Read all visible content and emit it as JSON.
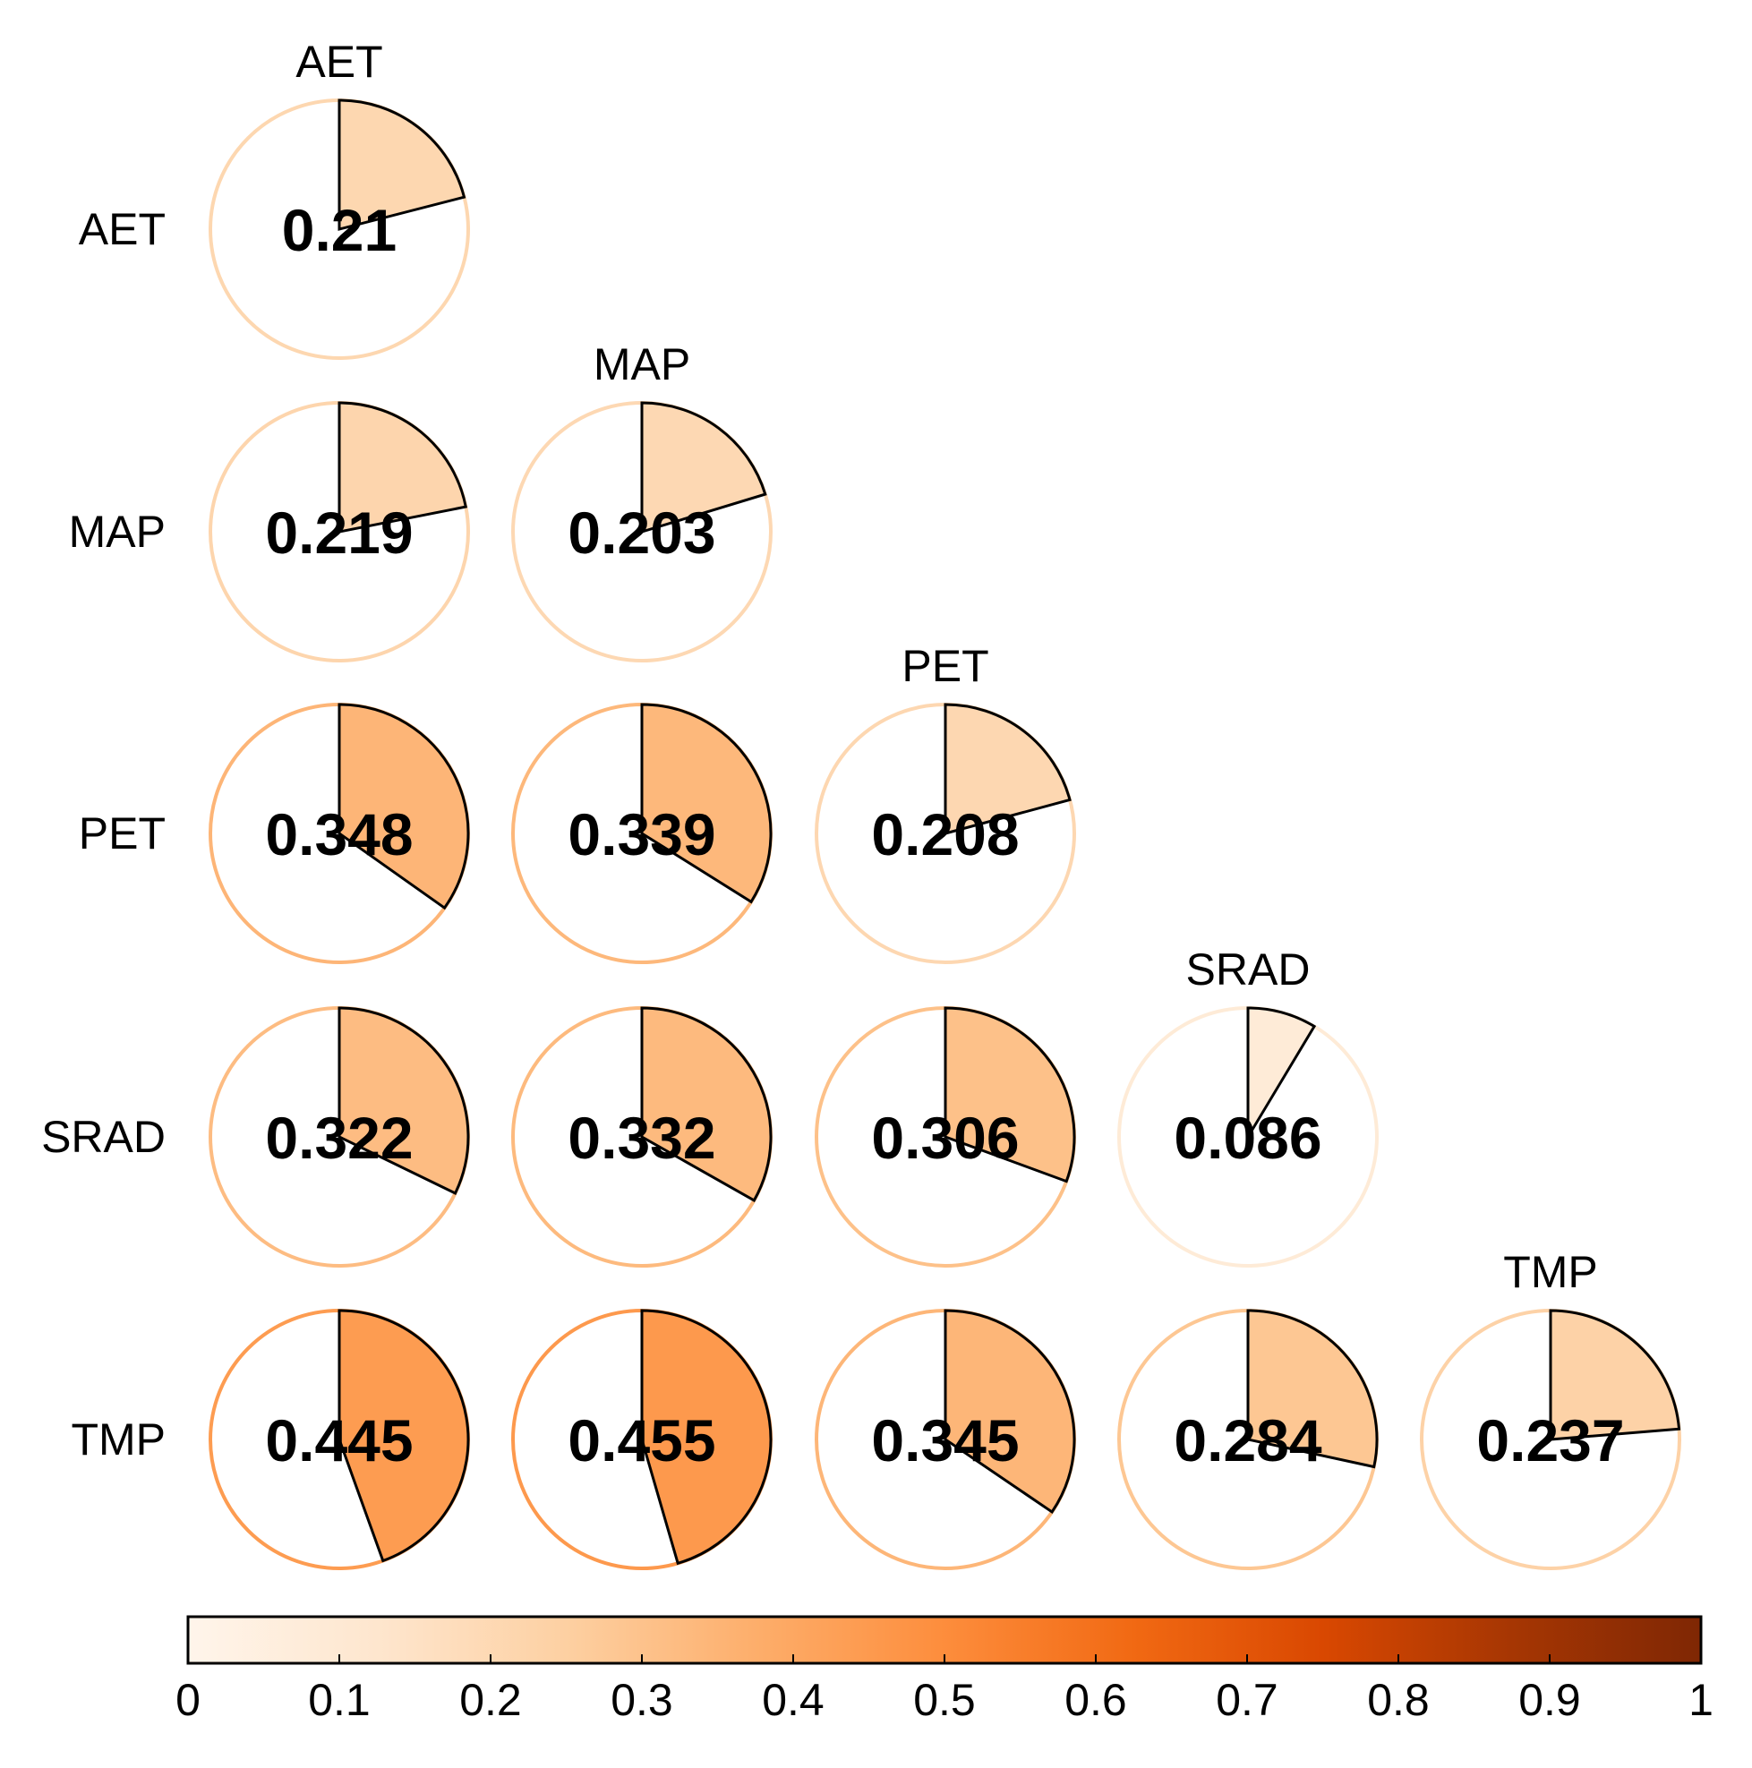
{
  "chart_data": {
    "type": "correlation-pie-matrix",
    "variables": [
      "AET",
      "MAP",
      "PET",
      "SRAD",
      "TMP"
    ],
    "cells": [
      {
        "row": "AET",
        "col": "AET",
        "value": 0.21,
        "label": "0.21"
      },
      {
        "row": "MAP",
        "col": "AET",
        "value": 0.219,
        "label": "0.219"
      },
      {
        "row": "MAP",
        "col": "MAP",
        "value": 0.203,
        "label": "0.203"
      },
      {
        "row": "PET",
        "col": "AET",
        "value": 0.348,
        "label": "0.348"
      },
      {
        "row": "PET",
        "col": "MAP",
        "value": 0.339,
        "label": "0.339"
      },
      {
        "row": "PET",
        "col": "PET",
        "value": 0.208,
        "label": "0.208"
      },
      {
        "row": "SRAD",
        "col": "AET",
        "value": 0.322,
        "label": "0.322"
      },
      {
        "row": "SRAD",
        "col": "MAP",
        "value": 0.332,
        "label": "0.332"
      },
      {
        "row": "SRAD",
        "col": "PET",
        "value": 0.306,
        "label": "0.306"
      },
      {
        "row": "SRAD",
        "col": "SRAD",
        "value": 0.086,
        "label": "0.086"
      },
      {
        "row": "TMP",
        "col": "AET",
        "value": 0.445,
        "label": "0.445"
      },
      {
        "row": "TMP",
        "col": "MAP",
        "value": 0.455,
        "label": "0.455"
      },
      {
        "row": "TMP",
        "col": "PET",
        "value": 0.345,
        "label": "0.345"
      },
      {
        "row": "TMP",
        "col": "SRAD",
        "value": 0.284,
        "label": "0.284"
      },
      {
        "row": "TMP",
        "col": "TMP",
        "value": 0.237,
        "label": "0.237"
      }
    ],
    "colorbar": {
      "range": [
        0,
        1
      ],
      "ticks": [
        "0",
        "0.1",
        "0.2",
        "0.3",
        "0.4",
        "0.5",
        "0.6",
        "0.7",
        "0.8",
        "0.9",
        "1"
      ],
      "colors": [
        "#fff5eb",
        "#fee6ce",
        "#fdd0a2",
        "#fdae6b",
        "#fd8d3c",
        "#f16913",
        "#d94801",
        "#a63603",
        "#7f2704"
      ],
      "placement": "bottom"
    }
  }
}
